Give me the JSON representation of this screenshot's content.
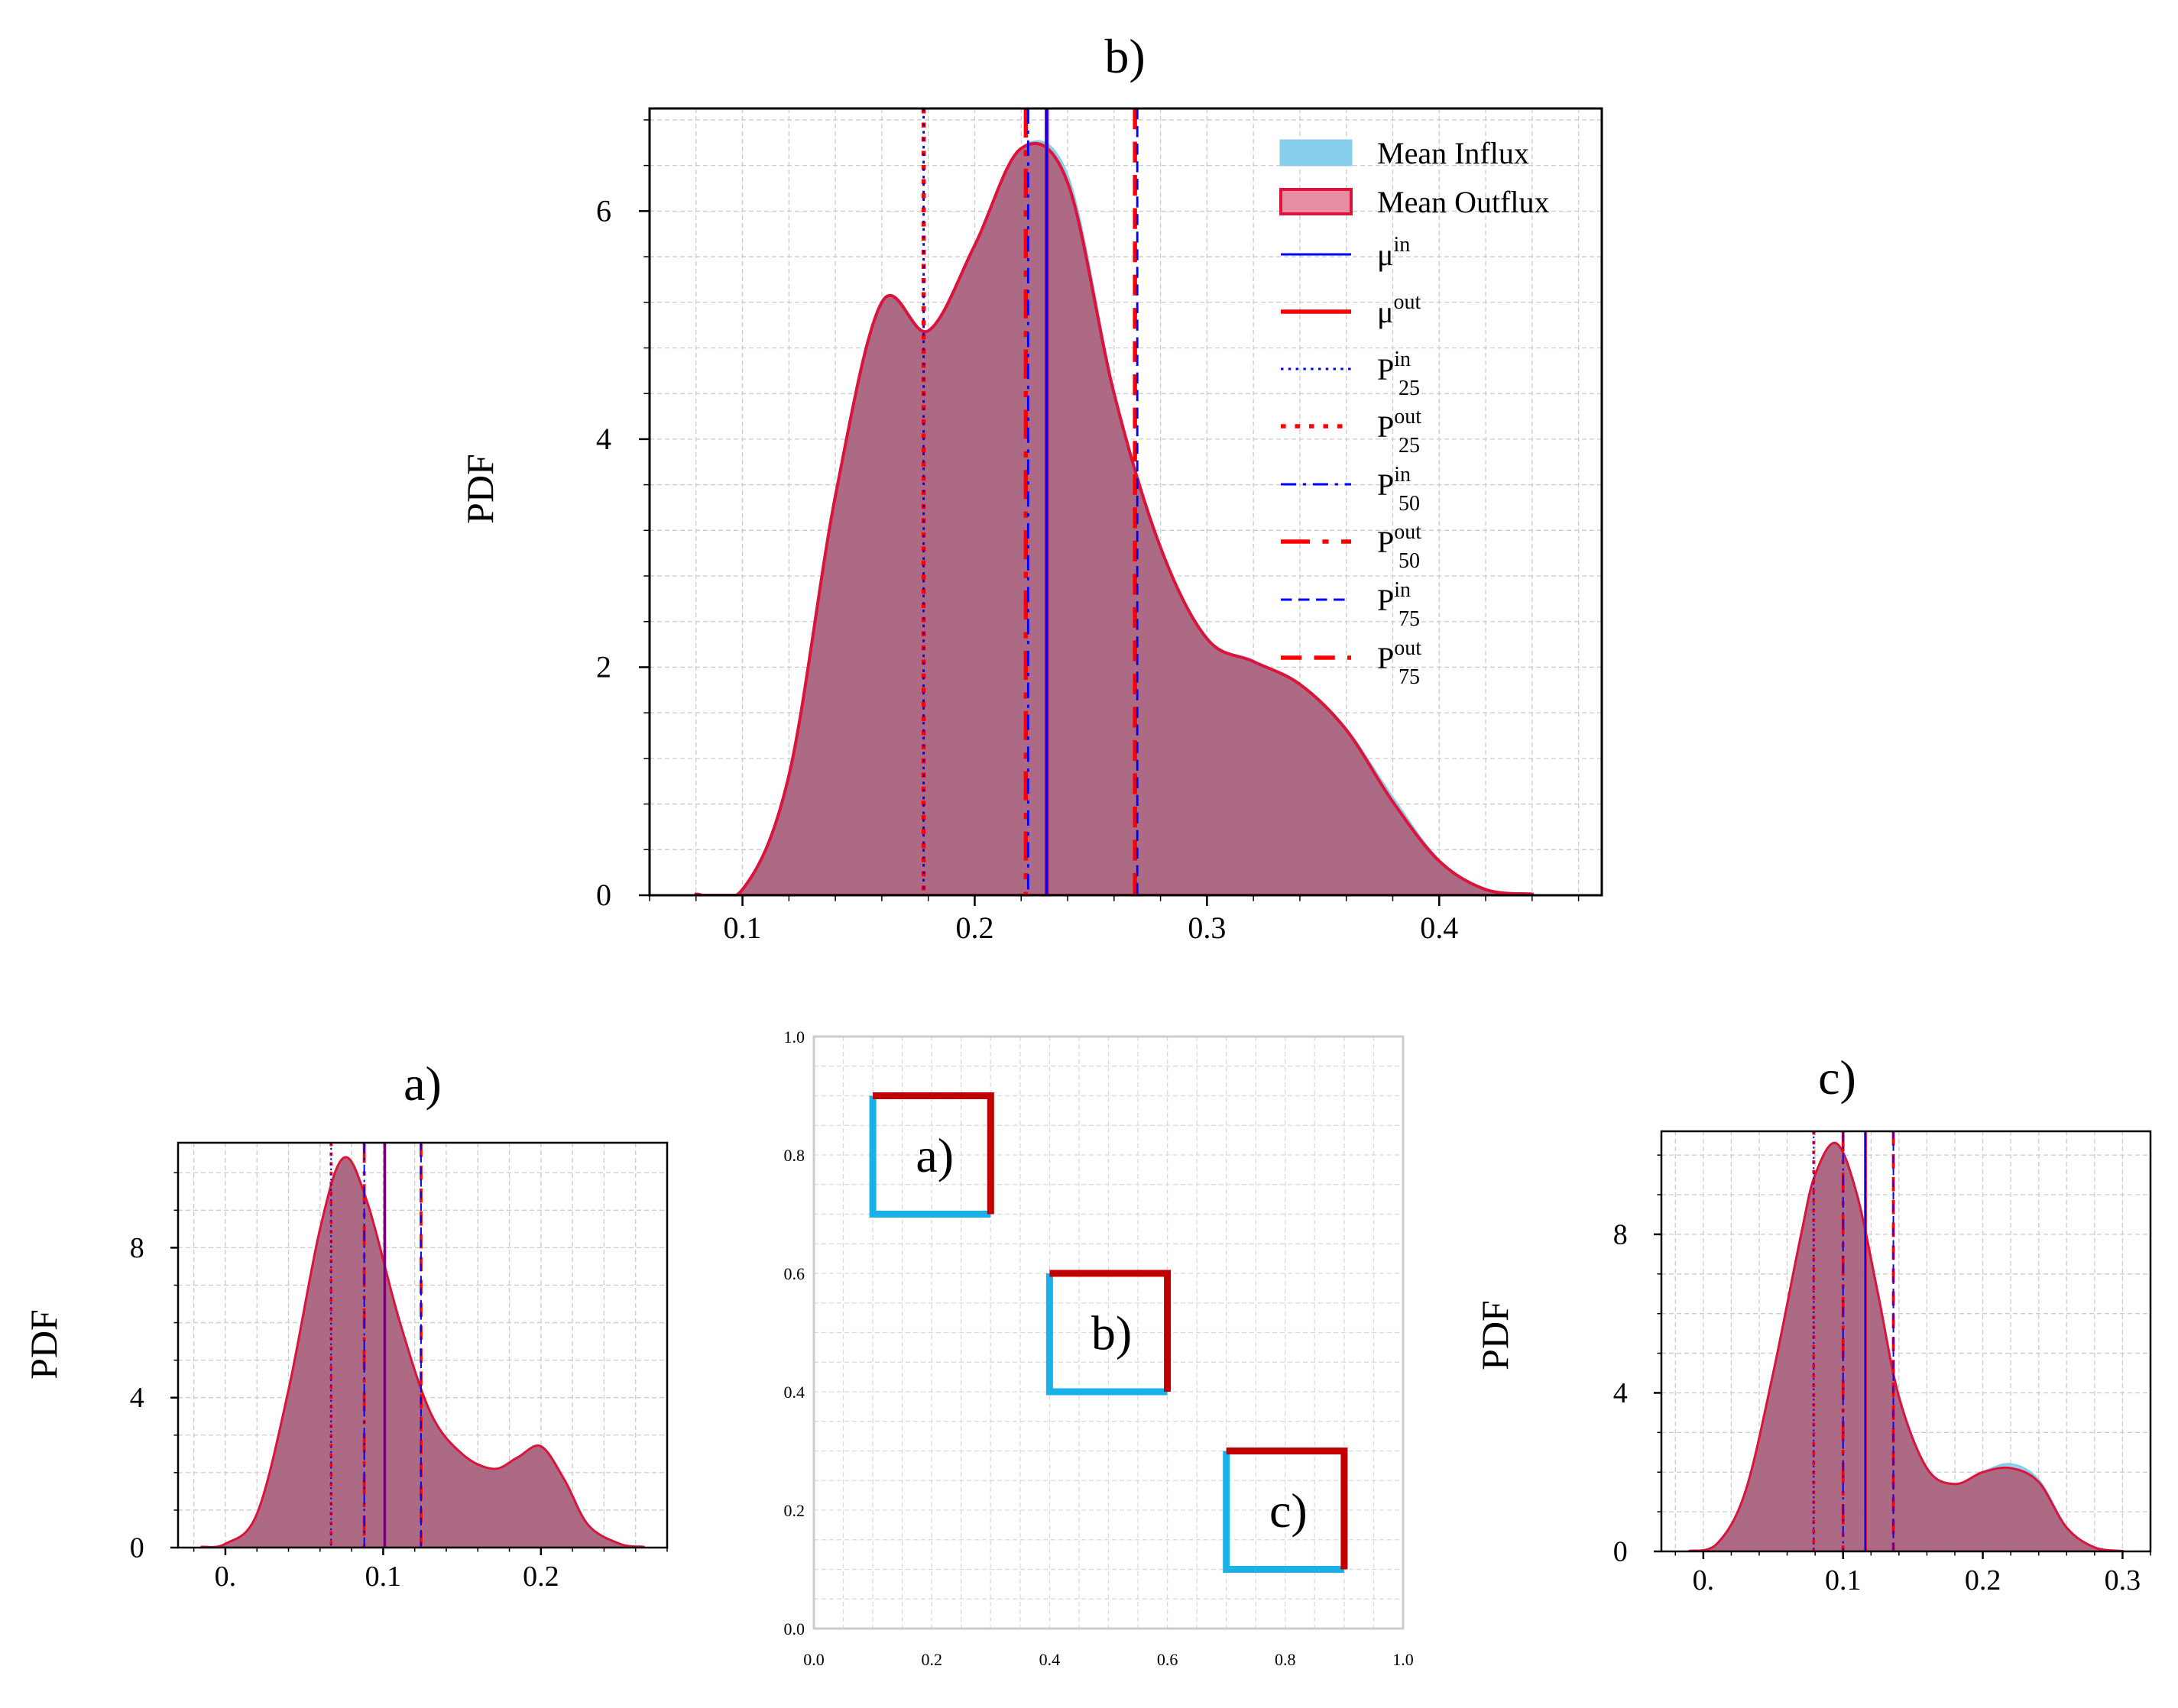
{
  "colors": {
    "influx_fill": "#87ceeb",
    "outflux_fill": "#b4415c",
    "outflux_edge": "#dc143c",
    "mu_in": "#0000ff",
    "mu_out": "#ff0000",
    "grid": "#cccccc",
    "map_blue": "#1ab0ea",
    "map_red": "#c00000"
  },
  "chart_data": [
    {
      "id": "b",
      "type": "area",
      "title": "b)",
      "ylabel": "PDF",
      "xlabel": "",
      "xlim": [
        0.06,
        0.47
      ],
      "ylim": [
        0,
        6.9
      ],
      "xticks": [
        0.1,
        0.2,
        0.3,
        0.4
      ],
      "xtick_labels": [
        "0.1",
        "0.2",
        "0.3",
        "0.4"
      ],
      "yticks": [
        0,
        2,
        4,
        6
      ],
      "ytick_labels": [
        "0",
        "2",
        "4",
        "6"
      ],
      "grid": true,
      "legend_position": "top-right",
      "series": [
        {
          "name": "Mean Influx",
          "x": [
            0.08,
            0.1,
            0.12,
            0.14,
            0.16,
            0.18,
            0.2,
            0.22,
            0.24,
            0.26,
            0.28,
            0.3,
            0.32,
            0.34,
            0.36,
            0.38,
            0.4,
            0.42,
            0.44
          ],
          "y": [
            0.01,
            0.05,
            1.05,
            3.5,
            5.2,
            4.95,
            5.7,
            6.55,
            6.3,
            4.4,
            3.05,
            2.25,
            2.05,
            1.85,
            1.45,
            0.85,
            0.3,
            0.05,
            0.01
          ]
        },
        {
          "name": "Mean Outflux",
          "x": [
            0.08,
            0.1,
            0.12,
            0.14,
            0.16,
            0.18,
            0.2,
            0.22,
            0.24,
            0.26,
            0.28,
            0.3,
            0.32,
            0.34,
            0.36,
            0.38,
            0.4,
            0.42,
            0.44
          ],
          "y": [
            0.01,
            0.05,
            1.05,
            3.5,
            5.2,
            4.95,
            5.7,
            6.55,
            6.25,
            4.4,
            3.05,
            2.25,
            2.05,
            1.85,
            1.45,
            0.82,
            0.3,
            0.05,
            0.01
          ]
        }
      ],
      "stats": {
        "mu_in": 0.231,
        "mu_out": 0.231,
        "p25_in": 0.178,
        "p25_out": 0.178,
        "p50_in": 0.223,
        "p50_out": 0.222,
        "p75_in": 0.27,
        "p75_out": 0.269
      },
      "legend": [
        {
          "label": "Mean Influx",
          "sup": "",
          "sub": "",
          "style": "patch-in"
        },
        {
          "label": "Mean Outflux",
          "sup": "",
          "sub": "",
          "style": "patch-out"
        },
        {
          "label": "μ",
          "sup": "in",
          "sub": "",
          "style": "mu-in"
        },
        {
          "label": "μ",
          "sup": "out",
          "sub": "",
          "style": "mu-out"
        },
        {
          "label": "P",
          "sup": "in",
          "sub": "25",
          "style": "p25-in"
        },
        {
          "label": "P",
          "sup": "out",
          "sub": "25",
          "style": "p25-out"
        },
        {
          "label": "P",
          "sup": "in",
          "sub": "50",
          "style": "p50-in"
        },
        {
          "label": "P",
          "sup": "out",
          "sub": "50",
          "style": "p50-out"
        },
        {
          "label": "P",
          "sup": "in",
          "sub": "75",
          "style": "p75-in"
        },
        {
          "label": "P",
          "sup": "out",
          "sub": "75",
          "style": "p75-out"
        }
      ]
    },
    {
      "id": "a",
      "type": "area",
      "title": "a)",
      "ylabel": "PDF",
      "xlabel": "",
      "xlim": [
        -0.03,
        0.28
      ],
      "ylim": [
        0,
        10.8
      ],
      "xticks": [
        0.0,
        0.1,
        0.2
      ],
      "xtick_labels": [
        "0.",
        "0.1",
        "0.2"
      ],
      "yticks": [
        0,
        4,
        8
      ],
      "ytick_labels": [
        "0",
        "4",
        "8"
      ],
      "grid": true,
      "series": [
        {
          "name": "Mean Influx",
          "x": [
            -0.015,
            0.0,
            0.02,
            0.04,
            0.06,
            0.075,
            0.09,
            0.11,
            0.13,
            0.15,
            0.17,
            0.185,
            0.2,
            0.215,
            0.23,
            0.25,
            0.265
          ],
          "y": [
            0.02,
            0.1,
            0.9,
            4.2,
            8.5,
            10.4,
            9.2,
            6.1,
            3.6,
            2.5,
            2.1,
            2.4,
            2.7,
            1.8,
            0.6,
            0.1,
            0.02
          ]
        },
        {
          "name": "Mean Outflux",
          "x": [
            -0.015,
            0.0,
            0.02,
            0.04,
            0.06,
            0.075,
            0.09,
            0.11,
            0.13,
            0.15,
            0.17,
            0.185,
            0.2,
            0.215,
            0.23,
            0.25,
            0.265
          ],
          "y": [
            0.02,
            0.1,
            0.9,
            4.2,
            8.5,
            10.4,
            9.2,
            6.1,
            3.6,
            2.5,
            2.1,
            2.4,
            2.7,
            1.8,
            0.6,
            0.1,
            0.02
          ]
        }
      ],
      "stats": {
        "mu_in": 0.101,
        "mu_out": 0.101,
        "p25_in": 0.067,
        "p25_out": 0.067,
        "p50_in": 0.088,
        "p50_out": 0.088,
        "p75_in": 0.124,
        "p75_out": 0.124
      }
    },
    {
      "id": "c",
      "type": "area",
      "title": "c)",
      "ylabel": "PDF",
      "xlabel": "",
      "xlim": [
        -0.03,
        0.32
      ],
      "ylim": [
        0,
        10.6
      ],
      "xticks": [
        0.0,
        0.1,
        0.2,
        0.3
      ],
      "xtick_labels": [
        "0.",
        "0.1",
        "0.2",
        "0.3"
      ],
      "yticks": [
        0,
        4,
        8
      ],
      "ytick_labels": [
        "0",
        "4",
        "8"
      ],
      "grid": true,
      "series": [
        {
          "name": "Mean Influx",
          "x": [
            -0.01,
            0.01,
            0.03,
            0.05,
            0.07,
            0.08,
            0.095,
            0.11,
            0.125,
            0.14,
            0.16,
            0.18,
            0.2,
            0.22,
            0.24,
            0.26,
            0.28,
            0.3
          ],
          "y": [
            0.01,
            0.2,
            1.5,
            4.5,
            8.0,
            9.5,
            10.3,
            9.0,
            6.5,
            3.9,
            2.1,
            1.7,
            2.0,
            2.2,
            1.8,
            0.6,
            0.1,
            0.01
          ]
        },
        {
          "name": "Mean Outflux",
          "x": [
            -0.01,
            0.01,
            0.03,
            0.05,
            0.07,
            0.08,
            0.095,
            0.11,
            0.125,
            0.14,
            0.16,
            0.18,
            0.2,
            0.22,
            0.24,
            0.26,
            0.28,
            0.3
          ],
          "y": [
            0.01,
            0.2,
            1.5,
            4.5,
            8.0,
            9.5,
            10.3,
            9.0,
            6.5,
            3.9,
            2.1,
            1.7,
            2.0,
            2.1,
            1.75,
            0.6,
            0.1,
            0.01
          ]
        }
      ],
      "stats": {
        "mu_in": 0.116,
        "mu_out": 0.116,
        "p25_in": 0.079,
        "p25_out": 0.079,
        "p50_in": 0.1,
        "p50_out": 0.1,
        "p75_in": 0.136,
        "p75_out": 0.136
      }
    },
    {
      "id": "map",
      "type": "diagram",
      "title": "",
      "xlim": [
        0.0,
        1.0
      ],
      "ylim": [
        0.0,
        1.0
      ],
      "xticks": [
        0.0,
        0.2,
        0.4,
        0.6,
        0.8,
        1.0
      ],
      "xtick_labels": [
        "0.0",
        "0.2",
        "0.4",
        "0.6",
        "0.8",
        "1.0"
      ],
      "yticks": [
        0.0,
        0.2,
        0.4,
        0.6,
        0.8,
        1.0
      ],
      "ytick_labels": [
        "0.0",
        "0.2",
        "0.4",
        "0.6",
        "0.8",
        "1.0"
      ],
      "grid": true,
      "boxes": [
        {
          "label": "a)",
          "x0": 0.1,
          "x1": 0.3,
          "y0": 0.7,
          "y1": 0.9
        },
        {
          "label": "b)",
          "x0": 0.4,
          "x1": 0.6,
          "y0": 0.4,
          "y1": 0.6
        },
        {
          "label": "c)",
          "x0": 0.7,
          "x1": 0.9,
          "y0": 0.1,
          "y1": 0.3
        }
      ]
    }
  ]
}
